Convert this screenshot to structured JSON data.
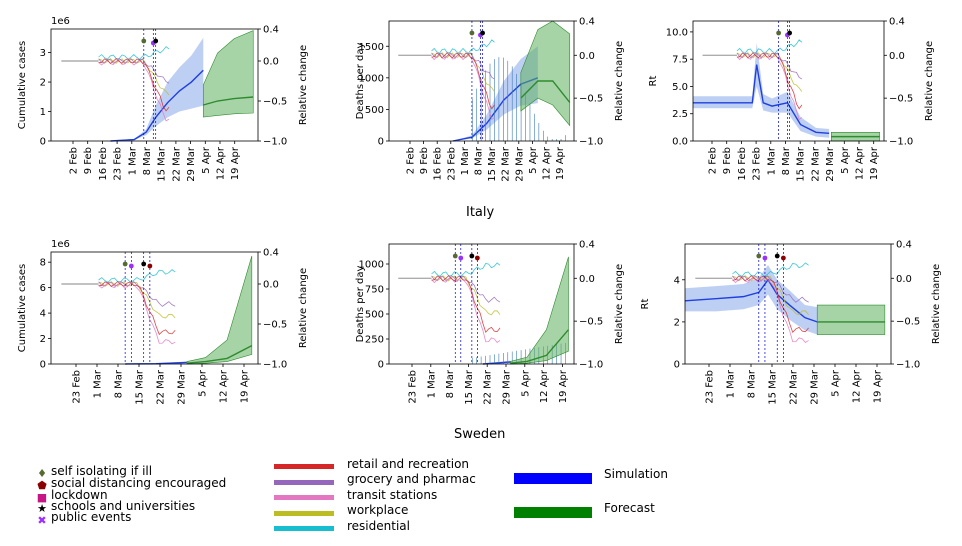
{
  "countries": [
    "Italy",
    "Sweden"
  ],
  "colors": {
    "simulation": "#1f3fe0",
    "simulation_band": "#6f95e6",
    "forecast": "#2e8b2e",
    "forecast_band": "#5fb05f",
    "observed": "#3a7ab7",
    "retail": "#d62728",
    "grocery": "#9467bd",
    "transit": "#e377c2",
    "workplace": "#bcbd22",
    "residential": "#17becf",
    "intervention_line": "#0000cc"
  },
  "legend": {
    "interventions": [
      {
        "label": "self isolating if ill",
        "icon": "diamond-icon",
        "color": "#556b2f",
        "glyph": "♦"
      },
      {
        "label": "social distancing encouraged",
        "icon": "pentagon-icon",
        "color": "#8b0000",
        "glyph": "⬟"
      },
      {
        "label": "lockdown",
        "icon": "square-icon",
        "color": "#c71585",
        "glyph": "■"
      },
      {
        "label": "schools and universities",
        "icon": "star-icon",
        "color": "#000000",
        "glyph": "★"
      },
      {
        "label": "public events",
        "icon": "x-icon",
        "color": "#9b30ff",
        "glyph": "✖"
      }
    ],
    "mobility": [
      {
        "label": "retail and recreation",
        "color": "#d62728"
      },
      {
        "label": "grocery and pharmac",
        "color": "#9467bd"
      },
      {
        "label": "transit stations",
        "color": "#e377c2"
      },
      {
        "label": "workplace",
        "color": "#bcbd22"
      },
      {
        "label": "residential",
        "color": "#17becf"
      }
    ],
    "model": [
      {
        "label": "Simulation",
        "color": "#0000ff"
      },
      {
        "label": "Forecast",
        "color": "#008000"
      }
    ]
  },
  "chart_data": [
    {
      "type": "line",
      "country": "Italy",
      "panel": "cumulative",
      "ylabel": "Cumulative cases",
      "y2label": "Relative change",
      "y_scale_note": "1e6",
      "x_dates": [
        "2020-01-26",
        "2020-04-22"
      ],
      "xticks": [
        "2 Feb",
        "9 Feb",
        "16 Feb",
        "23 Feb",
        "1 Mar",
        "8 Mar",
        "15 Mar",
        "22 Mar",
        "29 Mar",
        "5 Apr",
        "12 Apr",
        "19 Apr"
      ],
      "ylim": [
        0,
        3.8
      ],
      "yticks": [
        0,
        1,
        2,
        3
      ],
      "y2lim": [
        -1.0,
        0.4
      ],
      "y2ticks": [
        "0.4",
        "0.0",
        "−0.5",
        "−1.0"
      ],
      "interventions": [
        "2020-03-05",
        "2020-03-09",
        "2020-03-10"
      ],
      "simulation": {
        "x": [
          "2020-02-20",
          "2020-03-01",
          "2020-03-06",
          "2020-03-10",
          "2020-03-15",
          "2020-03-20",
          "2020-03-25",
          "2020-03-30"
        ],
        "y": [
          0,
          0.05,
          0.3,
          0.8,
          1.3,
          1.7,
          2.0,
          2.4
        ],
        "low": [
          0,
          0.04,
          0.2,
          0.5,
          0.8,
          1.0,
          1.1,
          1.2
        ],
        "high": [
          0,
          0.07,
          0.4,
          1.2,
          2.0,
          2.5,
          2.9,
          3.5
        ]
      },
      "forecast": {
        "x": [
          "2020-03-30",
          "2020-04-05",
          "2020-04-12",
          "2020-04-20"
        ],
        "y": [
          -0.55,
          -0.5,
          -0.47,
          -0.45
        ],
        "low": [
          -0.7,
          -0.68,
          -0.66,
          -0.65
        ],
        "high": [
          -0.3,
          0.1,
          0.28,
          0.38
        ]
      },
      "mobility_level": [
        0.0,
        0.0,
        0.0,
        0.0,
        0.08
      ]
    },
    {
      "type": "line",
      "country": "Italy",
      "panel": "deaths",
      "ylabel": "Deaths per day",
      "y2label": "Relative change",
      "x_dates": [
        "2020-01-26",
        "2020-04-22"
      ],
      "xticks": [
        "2 Feb",
        "9 Feb",
        "16 Feb",
        "23 Feb",
        "1 Mar",
        "8 Mar",
        "15 Mar",
        "22 Mar",
        "29 Mar",
        "5 Apr",
        "12 Apr",
        "19 Apr"
      ],
      "ylim": [
        0,
        1900
      ],
      "yticks": [
        0,
        500,
        1000,
        1500
      ],
      "y2lim": [
        -1.0,
        0.4
      ],
      "y2ticks": [
        "0.4",
        "0.0",
        "−0.5",
        "−1.0"
      ],
      "interventions": [
        "2020-03-05",
        "2020-03-09",
        "2020-03-10"
      ],
      "simulation": {
        "x": [
          "2020-02-25",
          "2020-03-05",
          "2020-03-12",
          "2020-03-20",
          "2020-03-28",
          "2020-04-05"
        ],
        "y": [
          0,
          60,
          280,
          650,
          900,
          1000
        ],
        "low": [
          0,
          40,
          180,
          420,
          560,
          600
        ],
        "high": [
          0,
          90,
          420,
          950,
          1300,
          1500
        ]
      },
      "forecast": {
        "x": [
          "2020-03-28",
          "2020-04-05",
          "2020-04-12",
          "2020-04-20"
        ],
        "y": [
          -0.5,
          -0.3,
          -0.3,
          -0.55
        ],
        "low": [
          -0.65,
          -0.5,
          -0.58,
          -0.82
        ],
        "high": [
          -0.2,
          0.3,
          0.4,
          0.25
        ]
      },
      "observed_bars": true
    },
    {
      "type": "line",
      "country": "Italy",
      "panel": "rt",
      "ylabel": "Rt",
      "y2label": "Relative change",
      "x_dates": [
        "2020-01-26",
        "2020-04-22"
      ],
      "xticks": [
        "2 Feb",
        "9 Feb",
        "16 Feb",
        "23 Feb",
        "1 Mar",
        "8 Mar",
        "15 Mar",
        "22 Mar",
        "29 Mar",
        "5 Apr",
        "12 Apr",
        "19 Apr"
      ],
      "ylim": [
        0,
        11
      ],
      "yticks": [
        "0.0",
        "2.5",
        "5.0",
        "7.5",
        "10.0"
      ],
      "y2lim": [
        -1.0,
        0.4
      ],
      "y2ticks": [
        "0.4",
        "0.0",
        "−0.5",
        "−1.0"
      ],
      "interventions": [
        "2020-03-05",
        "2020-03-09",
        "2020-03-10"
      ],
      "simulation": {
        "x": [
          "2020-01-26",
          "2020-02-22",
          "2020-02-24",
          "2020-02-27",
          "2020-03-02",
          "2020-03-09",
          "2020-03-15",
          "2020-03-22",
          "2020-03-28"
        ],
        "y": [
          3.5,
          3.5,
          7.0,
          3.5,
          3.2,
          3.5,
          1.5,
          0.8,
          0.7
        ],
        "low": [
          3.0,
          3.0,
          5.0,
          2.8,
          2.6,
          2.6,
          0.9,
          0.4,
          0.3
        ],
        "high": [
          4.1,
          4.1,
          9.0,
          4.3,
          3.9,
          4.5,
          2.2,
          1.2,
          1.1
        ]
      },
      "forecast": {
        "x": [
          "2020-03-29",
          "2020-04-20"
        ],
        "y": [
          0.4,
          0.4
        ],
        "low": [
          0.0,
          0.0
        ],
        "high": [
          0.8,
          0.8
        ]
      }
    },
    {
      "type": "line",
      "country": "Sweden",
      "panel": "cumulative",
      "ylabel": "Cumulative cases",
      "y2label": "Relative change",
      "y_scale_note": "1e6",
      "x_dates": [
        "2020-02-15",
        "2020-04-22"
      ],
      "xticks": [
        "23 Feb",
        "1 Mar",
        "8 Mar",
        "15 Mar",
        "22 Mar",
        "29 Mar",
        "5 Apr",
        "12 Apr",
        "19 Apr"
      ],
      "ylim": [
        0,
        8.8
      ],
      "yticks": [
        0,
        2,
        4,
        6,
        8
      ],
      "y2lim": [
        -1.0,
        0.4
      ],
      "y2ticks": [
        "0.4",
        "0.0",
        "−0.5",
        "−1.0"
      ],
      "interventions": [
        "2020-03-10",
        "2020-03-12",
        "2020-03-16",
        "2020-03-18"
      ],
      "simulation": {
        "x": [
          "2020-03-10",
          "2020-03-20",
          "2020-03-30"
        ],
        "y": [
          0,
          0.02,
          0.12
        ],
        "low": [
          0,
          0.01,
          0.08
        ],
        "high": [
          0,
          0.04,
          0.2
        ]
      },
      "forecast": {
        "x": [
          "2020-03-30",
          "2020-04-05",
          "2020-04-12",
          "2020-04-20"
        ],
        "y": [
          -0.99,
          -0.97,
          -0.93,
          -0.77
        ],
        "low": [
          -1.0,
          -0.99,
          -0.97,
          -0.88
        ],
        "high": [
          -0.97,
          -0.92,
          -0.7,
          0.35
        ]
      }
    },
    {
      "type": "line",
      "country": "Sweden",
      "panel": "deaths",
      "ylabel": "Deaths per day",
      "y2label": "Relative change",
      "x_dates": [
        "2020-02-15",
        "2020-04-22"
      ],
      "xticks": [
        "23 Feb",
        "1 Mar",
        "8 Mar",
        "15 Mar",
        "22 Mar",
        "29 Mar",
        "5 Apr",
        "12 Apr",
        "19 Apr"
      ],
      "ylim": [
        0,
        1200
      ],
      "yticks": [
        0,
        250,
        500,
        750,
        1000
      ],
      "y2lim": [
        -1.0,
        0.4
      ],
      "y2ticks": [
        "0.4",
        "0.0",
        "−0.5",
        "−1.0"
      ],
      "interventions": [
        "2020-03-10",
        "2020-03-12",
        "2020-03-16",
        "2020-03-18"
      ],
      "simulation": {
        "x": [
          "2020-03-20",
          "2020-03-30"
        ],
        "y": [
          0,
          20
        ],
        "low": [
          0,
          10
        ],
        "high": [
          0,
          35
        ]
      },
      "forecast": {
        "x": [
          "2020-03-30",
          "2020-04-05",
          "2020-04-12",
          "2020-04-20"
        ],
        "y": [
          -0.99,
          -0.97,
          -0.9,
          -0.6
        ],
        "low": [
          -1.0,
          -0.99,
          -0.96,
          -0.85
        ],
        "high": [
          -0.97,
          -0.92,
          -0.6,
          0.25
        ]
      },
      "observed_bars": true
    },
    {
      "type": "line",
      "country": "Sweden",
      "panel": "rt",
      "ylabel": "Rt",
      "y2label": "Relative change",
      "x_dates": [
        "2020-02-15",
        "2020-04-22"
      ],
      "xticks": [
        "23 Feb",
        "1 Mar",
        "8 Mar",
        "15 Mar",
        "22 Mar",
        "29 Mar",
        "5 Apr",
        "12 Apr",
        "19 Apr"
      ],
      "ylim": [
        0,
        5.7
      ],
      "yticks": [
        0,
        2,
        4
      ],
      "y2lim": [
        -1.0,
        0.4
      ],
      "y2ticks": [
        "0.4",
        "0.0",
        "−0.5",
        "−1.0"
      ],
      "interventions": [
        "2020-03-10",
        "2020-03-12",
        "2020-03-16",
        "2020-03-18"
      ],
      "simulation": {
        "x": [
          "2020-02-15",
          "2020-02-25",
          "2020-03-05",
          "2020-03-10",
          "2020-03-13",
          "2020-03-16",
          "2020-03-20",
          "2020-03-25",
          "2020-03-29"
        ],
        "y": [
          3.0,
          3.1,
          3.2,
          3.4,
          4.0,
          3.3,
          2.8,
          2.2,
          2.0
        ],
        "low": [
          2.5,
          2.5,
          2.6,
          2.8,
          3.3,
          2.6,
          2.1,
          1.6,
          1.4
        ],
        "high": [
          3.6,
          3.7,
          3.8,
          4.1,
          4.7,
          4.0,
          3.5,
          2.8,
          2.7
        ]
      },
      "forecast": {
        "x": [
          "2020-03-29",
          "2020-04-20"
        ],
        "y": [
          2.0,
          2.0
        ],
        "low": [
          1.4,
          1.4
        ],
        "high": [
          2.8,
          2.8
        ]
      }
    }
  ]
}
